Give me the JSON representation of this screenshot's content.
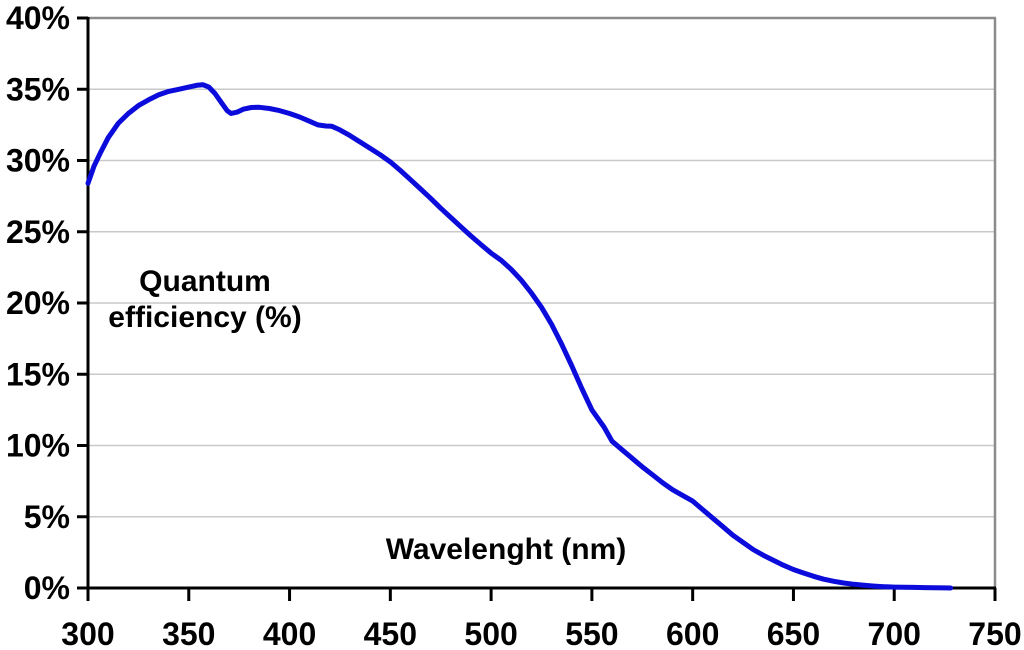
{
  "chart_data": {
    "type": "line",
    "title": "",
    "xlabel": "Wavelenght (nm)",
    "ylabel": "Quantum efficiency (%)",
    "ylabel_lines": [
      "Quantum",
      "efficiency (%)"
    ],
    "xlim": [
      300,
      750
    ],
    "ylim": [
      0,
      40
    ],
    "x_ticks": [
      300,
      350,
      400,
      450,
      500,
      550,
      600,
      650,
      700,
      750
    ],
    "x_tick_labels": [
      "300",
      "350",
      "400",
      "450",
      "500",
      "550",
      "600",
      "650",
      "700",
      "750"
    ],
    "y_ticks": [
      0,
      5,
      10,
      15,
      20,
      25,
      30,
      35,
      40
    ],
    "y_tick_labels": [
      "0%",
      "5%",
      "10%",
      "15%",
      "20%",
      "25%",
      "30%",
      "35%",
      "40%"
    ],
    "grid": "horizontal-only",
    "legend": "none",
    "series": [
      {
        "name": "Quantum efficiency",
        "color": "#0b0bdb",
        "points": [
          [
            300,
            28.4
          ],
          [
            303,
            29.6
          ],
          [
            306,
            30.5
          ],
          [
            310,
            31.6
          ],
          [
            315,
            32.6
          ],
          [
            320,
            33.3
          ],
          [
            325,
            33.85
          ],
          [
            330,
            34.25
          ],
          [
            335,
            34.6
          ],
          [
            340,
            34.85
          ],
          [
            345,
            35.0
          ],
          [
            350,
            35.15
          ],
          [
            354,
            35.28
          ],
          [
            357,
            35.32
          ],
          [
            360,
            35.15
          ],
          [
            363,
            34.7
          ],
          [
            366,
            34.1
          ],
          [
            369,
            33.5
          ],
          [
            371,
            33.3
          ],
          [
            374,
            33.4
          ],
          [
            377,
            33.6
          ],
          [
            381,
            33.72
          ],
          [
            385,
            33.73
          ],
          [
            390,
            33.65
          ],
          [
            395,
            33.5
          ],
          [
            400,
            33.3
          ],
          [
            405,
            33.05
          ],
          [
            410,
            32.75
          ],
          [
            414,
            32.5
          ],
          [
            418,
            32.42
          ],
          [
            421,
            32.4
          ],
          [
            425,
            32.15
          ],
          [
            430,
            31.75
          ],
          [
            435,
            31.3
          ],
          [
            440,
            30.85
          ],
          [
            445,
            30.4
          ],
          [
            450,
            29.9
          ],
          [
            455,
            29.3
          ],
          [
            460,
            28.65
          ],
          [
            465,
            28.0
          ],
          [
            470,
            27.35
          ],
          [
            475,
            26.65
          ],
          [
            480,
            26.0
          ],
          [
            485,
            25.35
          ],
          [
            490,
            24.7
          ],
          [
            495,
            24.1
          ],
          [
            500,
            23.5
          ],
          [
            505,
            23.0
          ],
          [
            510,
            22.35
          ],
          [
            515,
            21.6
          ],
          [
            520,
            20.7
          ],
          [
            525,
            19.7
          ],
          [
            530,
            18.5
          ],
          [
            535,
            17.1
          ],
          [
            540,
            15.6
          ],
          [
            545,
            14.0
          ],
          [
            550,
            12.5
          ],
          [
            553,
            11.9
          ],
          [
            556,
            11.3
          ],
          [
            560,
            10.3
          ],
          [
            565,
            9.7
          ],
          [
            570,
            9.1
          ],
          [
            575,
            8.5
          ],
          [
            580,
            7.95
          ],
          [
            585,
            7.4
          ],
          [
            590,
            6.9
          ],
          [
            595,
            6.5
          ],
          [
            600,
            6.1
          ],
          [
            605,
            5.5
          ],
          [
            610,
            4.9
          ],
          [
            615,
            4.3
          ],
          [
            620,
            3.7
          ],
          [
            625,
            3.2
          ],
          [
            630,
            2.7
          ],
          [
            635,
            2.3
          ],
          [
            640,
            1.95
          ],
          [
            645,
            1.6
          ],
          [
            650,
            1.3
          ],
          [
            655,
            1.05
          ],
          [
            660,
            0.82
          ],
          [
            665,
            0.62
          ],
          [
            670,
            0.47
          ],
          [
            675,
            0.35
          ],
          [
            680,
            0.26
          ],
          [
            685,
            0.19
          ],
          [
            690,
            0.13
          ],
          [
            695,
            0.09
          ],
          [
            700,
            0.06
          ],
          [
            705,
            0.05
          ],
          [
            710,
            0.04
          ],
          [
            715,
            0.03
          ],
          [
            720,
            0.02
          ],
          [
            725,
            0.01
          ],
          [
            728,
            0.0
          ]
        ]
      }
    ]
  },
  "colors": {
    "line": "#0b0bdb",
    "gridline": "#c9c9c9",
    "outer_border": "#8c8c8c",
    "axis": "#000000",
    "text": "#000000",
    "background": "#ffffff"
  }
}
